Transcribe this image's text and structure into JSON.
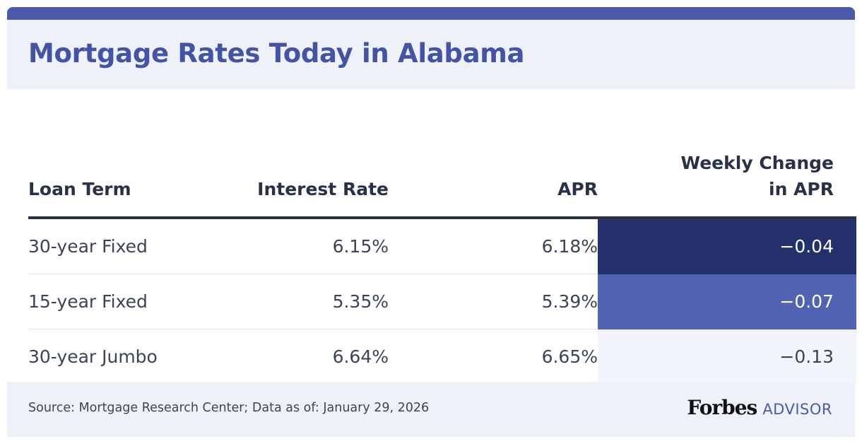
{
  "title": "Mortgage Rates Today in Alabama",
  "chart_data": {
    "type": "table",
    "columns": [
      "Loan Term",
      "Interest Rate",
      "APR",
      "Weekly Change in APR"
    ],
    "header_lines": {
      "weekly_change_line1": "Weekly Change",
      "weekly_change_line2": "in APR"
    },
    "rows": [
      {
        "term": "30-year Fixed",
        "rate": "6.15%",
        "apr": "6.18%",
        "change": "−0.04",
        "change_value": -0.04,
        "change_color": "#24306b",
        "change_text_color": "#ffffff"
      },
      {
        "term": "15-year Fixed",
        "rate": "5.35%",
        "apr": "5.39%",
        "change": "−0.07",
        "change_value": -0.07,
        "change_color": "#5163b2",
        "change_text_color": "#ffffff"
      },
      {
        "term": "30-year Jumbo",
        "rate": "6.64%",
        "apr": "6.65%",
        "change": "−0.13",
        "change_value": -0.13,
        "change_color": "#f2f5fc",
        "change_text_color": "#3b4457"
      }
    ]
  },
  "footer": {
    "source": "Source: Mortgage Research Center; Data as of: January 29, 2026",
    "logo_main": "Forbes",
    "logo_sub": "ADVISOR"
  },
  "colors": {
    "accent": "#4a5aa8",
    "title": "#4353a6",
    "header_bg": "#eef2f8",
    "text_dark": "#27324a"
  }
}
